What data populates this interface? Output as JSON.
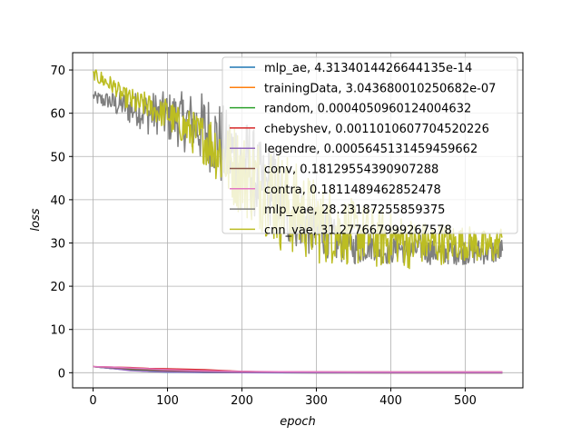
{
  "chart_data": {
    "type": "line",
    "xlabel": "epoch",
    "ylabel": "loss",
    "xlim": [
      -27.5,
      577.5
    ],
    "ylim": [
      -3.5,
      74
    ],
    "xticks": [
      0,
      100,
      200,
      300,
      400,
      500
    ],
    "yticks": [
      0,
      10,
      20,
      30,
      40,
      50,
      60,
      70
    ],
    "grid": true,
    "legend_position": "top-right",
    "series": [
      {
        "name": "mlp_ae",
        "legend": "mlp_ae, 4.3134014426644135e-14",
        "color": "#1f77b4",
        "x": [
          0,
          25,
          50,
          75,
          100,
          150,
          200,
          250,
          300,
          400,
          500,
          550
        ],
        "y": [
          1.4,
          1.0,
          0.6,
          0.3,
          0.15,
          0.05,
          0.01,
          0.0,
          0.0,
          0.0,
          0.0,
          0.0
        ]
      },
      {
        "name": "trainingData",
        "legend": "trainingData, 3.043680010250682e-07",
        "color": "#ff7f0e",
        "x": [
          0,
          25,
          50,
          75,
          100,
          150,
          200,
          250,
          300,
          400,
          500,
          550
        ],
        "y": [
          1.4,
          1.1,
          0.8,
          0.6,
          0.4,
          0.2,
          0.05,
          0.01,
          0.0,
          0.0,
          0.0,
          0.0
        ]
      },
      {
        "name": "random",
        "legend": "random, 0.0004050960124004632",
        "color": "#2ca02c",
        "x": [
          0,
          25,
          50,
          75,
          100,
          150,
          200,
          250,
          300,
          400,
          500,
          550
        ],
        "y": [
          1.4,
          1.0,
          0.7,
          0.4,
          0.25,
          0.1,
          0.03,
          0.01,
          0.0,
          0.0,
          0.0,
          0.0
        ]
      },
      {
        "name": "chebyshev",
        "legend": "chebyshev, 0.0011010607704520226",
        "color": "#d62728",
        "x": [
          0,
          25,
          50,
          75,
          100,
          125,
          150,
          175,
          200,
          250,
          300,
          400,
          500,
          550
        ],
        "y": [
          1.4,
          1.3,
          1.2,
          1.0,
          0.9,
          0.8,
          0.7,
          0.5,
          0.3,
          0.1,
          0.02,
          0.0,
          0.0,
          0.0
        ]
      },
      {
        "name": "legendre",
        "legend": "legendre, 0.0005645131459459662",
        "color": "#9467bd",
        "x": [
          0,
          25,
          50,
          75,
          100,
          150,
          200,
          250,
          300,
          400,
          500,
          550
        ],
        "y": [
          1.4,
          1.0,
          0.5,
          0.3,
          0.2,
          0.1,
          0.03,
          0.01,
          0.0,
          0.0,
          0.0,
          0.0
        ]
      },
      {
        "name": "conv",
        "legend": "conv, 0.18129554390907288",
        "color": "#8c564b",
        "x": [
          0,
          25,
          50,
          75,
          100,
          150,
          200,
          250,
          300,
          400,
          500,
          550
        ],
        "y": [
          1.4,
          1.2,
          0.9,
          0.7,
          0.5,
          0.35,
          0.25,
          0.2,
          0.19,
          0.18,
          0.18,
          0.18
        ]
      },
      {
        "name": "contra",
        "legend": "contra, 0.1811489462852478",
        "color": "#e377c2",
        "x": [
          0,
          25,
          50,
          75,
          100,
          150,
          200,
          250,
          300,
          400,
          500,
          550
        ],
        "y": [
          1.4,
          1.3,
          1.1,
          0.9,
          0.7,
          0.45,
          0.3,
          0.22,
          0.19,
          0.18,
          0.18,
          0.18
        ]
      },
      {
        "name": "mlp_vae",
        "legend": "mlp_vae, 28.23187255859375",
        "color": "#7f7f7f",
        "x": [
          0,
          10,
          20,
          30,
          40,
          50,
          60,
          70,
          80,
          90,
          100,
          110,
          120,
          130,
          140,
          150,
          160,
          170,
          180,
          190,
          200,
          210,
          220,
          230,
          240,
          250,
          260,
          270,
          280,
          290,
          300,
          310,
          320,
          330,
          340,
          350,
          360,
          370,
          380,
          390,
          400,
          410,
          420,
          430,
          440,
          450,
          460,
          470,
          480,
          490,
          500,
          510,
          520,
          530,
          540,
          550
        ],
        "y": [
          64,
          63,
          63,
          62,
          62,
          61,
          61,
          60,
          60,
          60,
          59,
          59,
          58,
          58,
          57,
          56,
          55,
          53,
          51,
          50,
          47,
          48,
          45,
          42,
          44,
          40,
          38,
          37,
          36,
          34,
          32,
          33,
          31,
          30,
          30,
          29,
          29,
          30,
          29,
          28,
          28,
          29,
          28,
          28,
          29,
          28,
          28,
          28,
          28,
          28,
          28,
          28,
          28,
          28,
          28,
          28.2
        ],
        "noise_band": [
          1,
          2,
          2,
          3,
          3,
          4,
          4,
          5,
          5,
          5,
          6,
          6,
          7,
          7,
          8,
          9,
          9,
          10,
          10,
          11,
          11,
          11,
          10,
          10,
          10,
          9,
          9,
          8,
          8,
          7,
          6,
          6,
          5,
          5,
          4,
          4,
          4,
          4,
          3,
          3,
          3,
          3,
          3,
          3,
          3,
          3,
          3,
          3,
          3,
          3,
          3,
          3,
          3,
          3,
          3,
          3
        ]
      },
      {
        "name": "cnn_vae",
        "legend": "cnn_vae, 31.277667999267578",
        "color": "#bcbd22",
        "x": [
          0,
          10,
          20,
          30,
          40,
          50,
          60,
          70,
          80,
          90,
          100,
          110,
          120,
          130,
          140,
          150,
          160,
          170,
          180,
          190,
          200,
          210,
          220,
          230,
          240,
          250,
          260,
          270,
          280,
          290,
          300,
          310,
          320,
          330,
          340,
          350,
          360,
          370,
          380,
          390,
          400,
          410,
          420,
          430,
          440,
          450,
          460,
          470,
          480,
          490,
          500,
          510,
          520,
          530,
          540,
          550
        ],
        "y": [
          69,
          68,
          67,
          66,
          64,
          63,
          62,
          62,
          61,
          60,
          60,
          58,
          57,
          56,
          55,
          54,
          53,
          51,
          49,
          48,
          46,
          45,
          44,
          43,
          42,
          40,
          39,
          38,
          37,
          36,
          35,
          34,
          34,
          33,
          33,
          32,
          32,
          32,
          31,
          31,
          31,
          31,
          30,
          30,
          30,
          30,
          30,
          30,
          30,
          30,
          30,
          30,
          29,
          29,
          29,
          31.3
        ],
        "noise_band": [
          1,
          2,
          2,
          2,
          2,
          3,
          3,
          3,
          3,
          3,
          4,
          4,
          4,
          5,
          5,
          6,
          7,
          8,
          9,
          10,
          10,
          10,
          11,
          11,
          12,
          12,
          12,
          11,
          11,
          10,
          10,
          9,
          9,
          8,
          8,
          8,
          7,
          7,
          7,
          7,
          6,
          6,
          6,
          6,
          5,
          5,
          5,
          5,
          5,
          4,
          4,
          4,
          4,
          4,
          4,
          3
        ]
      }
    ]
  }
}
